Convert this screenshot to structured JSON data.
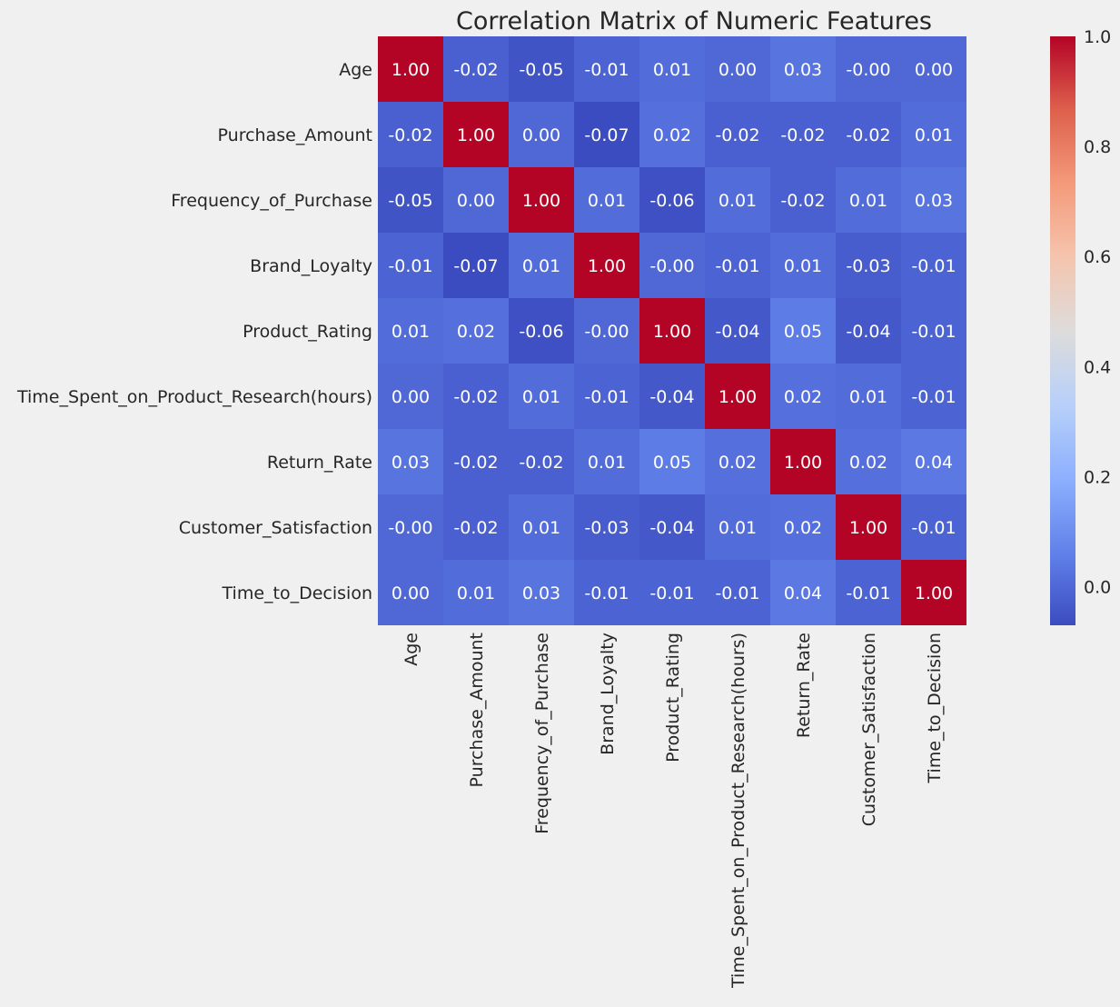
{
  "chart_data": {
    "type": "heatmap",
    "title": "Correlation Matrix of Numeric Features",
    "row_labels": [
      "Age",
      "Purchase_Amount",
      "Frequency_of_Purchase",
      "Brand_Loyalty",
      "Product_Rating",
      "Time_Spent_on_Product_Research(hours)",
      "Return_Rate",
      "Customer_Satisfaction",
      "Time_to_Decision"
    ],
    "col_labels": [
      "Age",
      "Purchase_Amount",
      "Frequency_of_Purchase",
      "Brand_Loyalty",
      "Product_Rating",
      "Time_Spent_on_Product_Research(hours)",
      "Return_Rate",
      "Customer_Satisfaction",
      "Time_to_Decision"
    ],
    "values": [
      [
        1.0,
        -0.02,
        -0.05,
        -0.01,
        0.01,
        0.0,
        0.03,
        -0.0,
        0.0
      ],
      [
        -0.02,
        1.0,
        0.0,
        -0.07,
        0.02,
        -0.02,
        -0.02,
        -0.02,
        0.01
      ],
      [
        -0.05,
        0.0,
        1.0,
        0.01,
        -0.06,
        0.01,
        -0.02,
        0.01,
        0.03
      ],
      [
        -0.01,
        -0.07,
        0.01,
        1.0,
        -0.0,
        -0.01,
        0.01,
        -0.03,
        -0.01
      ],
      [
        0.01,
        0.02,
        -0.06,
        -0.0,
        1.0,
        -0.04,
        0.05,
        -0.04,
        -0.01
      ],
      [
        0.0,
        -0.02,
        0.01,
        -0.01,
        -0.04,
        1.0,
        0.02,
        0.01,
        -0.01
      ],
      [
        0.03,
        -0.02,
        -0.02,
        0.01,
        0.05,
        0.02,
        1.0,
        0.02,
        0.04
      ],
      [
        -0.0,
        -0.02,
        0.01,
        -0.03,
        -0.04,
        0.01,
        0.02,
        1.0,
        -0.01
      ],
      [
        0.0,
        0.01,
        0.03,
        -0.01,
        -0.01,
        -0.01,
        0.04,
        -0.01,
        1.0
      ]
    ],
    "annotations": [
      [
        "1.00",
        "-0.02",
        "-0.05",
        "-0.01",
        "0.01",
        "0.00",
        "0.03",
        "-0.00",
        "0.00"
      ],
      [
        "-0.02",
        "1.00",
        "0.00",
        "-0.07",
        "0.02",
        "-0.02",
        "-0.02",
        "-0.02",
        "0.01"
      ],
      [
        "-0.05",
        "0.00",
        "1.00",
        "0.01",
        "-0.06",
        "0.01",
        "-0.02",
        "0.01",
        "0.03"
      ],
      [
        "-0.01",
        "-0.07",
        "0.01",
        "1.00",
        "-0.00",
        "-0.01",
        "0.01",
        "-0.03",
        "-0.01"
      ],
      [
        "0.01",
        "0.02",
        "-0.06",
        "-0.00",
        "1.00",
        "-0.04",
        "0.05",
        "-0.04",
        "-0.01"
      ],
      [
        "0.00",
        "-0.02",
        "0.01",
        "-0.01",
        "-0.04",
        "1.00",
        "0.02",
        "0.01",
        "-0.01"
      ],
      [
        "0.03",
        "-0.02",
        "-0.02",
        "0.01",
        "0.05",
        "0.02",
        "1.00",
        "0.02",
        "0.04"
      ],
      [
        "-0.00",
        "-0.02",
        "0.01",
        "-0.03",
        "-0.04",
        "0.01",
        "0.02",
        "1.00",
        "-0.01"
      ],
      [
        "0.00",
        "0.01",
        "0.03",
        "-0.01",
        "-0.01",
        "-0.01",
        "0.04",
        "-0.01",
        "1.00"
      ]
    ],
    "colormap": "coolwarm",
    "color_range": [
      -0.07,
      1.0
    ],
    "colorbar_ticks": [
      "0.0",
      "0.2",
      "0.4",
      "0.6",
      "0.8",
      "1.0"
    ],
    "colorbar_tick_values": [
      0.0,
      0.2,
      0.4,
      0.6,
      0.8,
      1.0
    ],
    "colors": {
      "background": "#f0f0f0",
      "text": "#262626",
      "annotation_text": "#ffffff",
      "cmap_low": "#3b4cc0",
      "cmap_mid": "#dddcdb",
      "cmap_high": "#b40426"
    }
  }
}
